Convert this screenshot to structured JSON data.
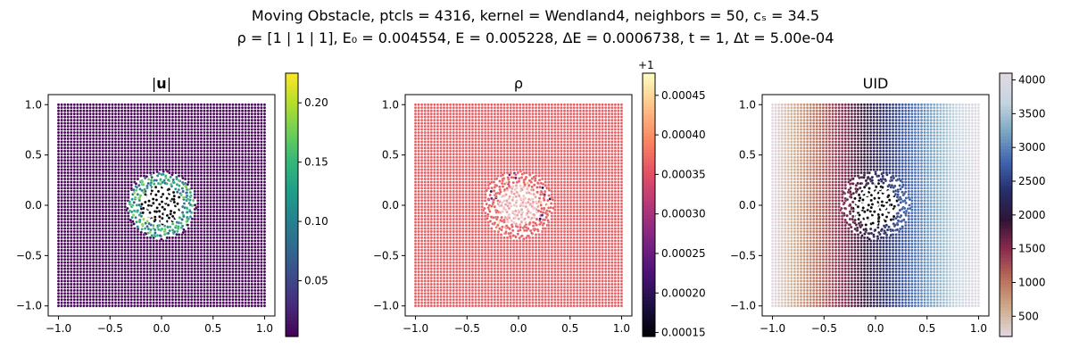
{
  "figure": {
    "title_line1": "Moving Obstacle, ptcls = 4316, kernel = Wendland4, neighbors = 50, cₛ = 34.5",
    "title_line2": "ρ = [1 | 1 | 1], E₀ = 0.004554, E = 0.005228, ΔE = 0.0006738, t = 1, Δt = 5.00e-04"
  },
  "chart_data": [
    {
      "type": "scatter",
      "title": "|u|",
      "xlim": [
        -1.1,
        1.1
      ],
      "ylim": [
        -1.1,
        1.1
      ],
      "x_ticks": [
        "-1.0",
        "-0.5",
        "0.0",
        "0.5",
        "1.0"
      ],
      "y_ticks": [
        "-1.0",
        "-0.5",
        "0.0",
        "0.5",
        "1.0"
      ],
      "grid": false,
      "colormap": "viridis",
      "colorbar": {
        "range": [
          0.003,
          0.225
        ],
        "ticks": [
          "0.05",
          "0.10",
          "0.15",
          "0.20"
        ],
        "tick_values": [
          0.05,
          0.1,
          0.15,
          0.2
        ]
      },
      "points": "regular lattice of particles on [-1,1]x[-1,1]; obstacle of radius ~0.25 at origin with disturbed ring of particles",
      "colors": {
        "background": "#440154",
        "ring_low": "#3b528b",
        "ring_mid": "#21918c",
        "ring_high": "#5ec962",
        "ring_peak": "#fde725",
        "obstacle": "#000000"
      }
    },
    {
      "type": "scatter",
      "title": "ρ",
      "xlim": [
        -1.1,
        1.1
      ],
      "ylim": [
        -1.1,
        1.1
      ],
      "x_ticks": [
        "-1.0",
        "-0.5",
        "0.0",
        "0.5",
        "1.0"
      ],
      "y_ticks": [
        "-1.0",
        "-0.5",
        "0.0",
        "0.5",
        "1.0"
      ],
      "grid": false,
      "colormap": "magma",
      "colorbar": {
        "offset": "+1",
        "range": [
          0.000145,
          0.000478
        ],
        "ticks": [
          "0.00015",
          "0.00020",
          "0.00025",
          "0.00030",
          "0.00035",
          "0.00040",
          "0.00045"
        ],
        "tick_values": [
          0.00015,
          0.0002,
          0.00025,
          0.0003,
          0.00035,
          0.0004,
          0.00045
        ]
      },
      "colors": {
        "background": "#e55c5c",
        "ring_low": "#3b0f70",
        "ring_mid": "#8c2981",
        "ring_high": "#fcfdbf",
        "obstacle": "#000000"
      }
    },
    {
      "type": "scatter",
      "title": "UID",
      "xlim": [
        -1.1,
        1.1
      ],
      "ylim": [
        -1.1,
        1.1
      ],
      "x_ticks": [
        "-1.0",
        "-0.5",
        "0.0",
        "0.5",
        "1.0"
      ],
      "y_ticks": [
        "-1.0",
        "-0.5",
        "0.0",
        "0.5",
        "1.0"
      ],
      "grid": false,
      "colormap": "twilight",
      "colorbar": {
        "range": [
          200,
          4100
        ],
        "ticks": [
          "500",
          "1000",
          "1500",
          "2000",
          "2500",
          "3000",
          "3500",
          "4000"
        ],
        "tick_values": [
          500,
          1000,
          1500,
          2000,
          2500,
          3000,
          3500,
          4000
        ]
      },
      "colors": {
        "obstacle": "#000000"
      }
    }
  ]
}
